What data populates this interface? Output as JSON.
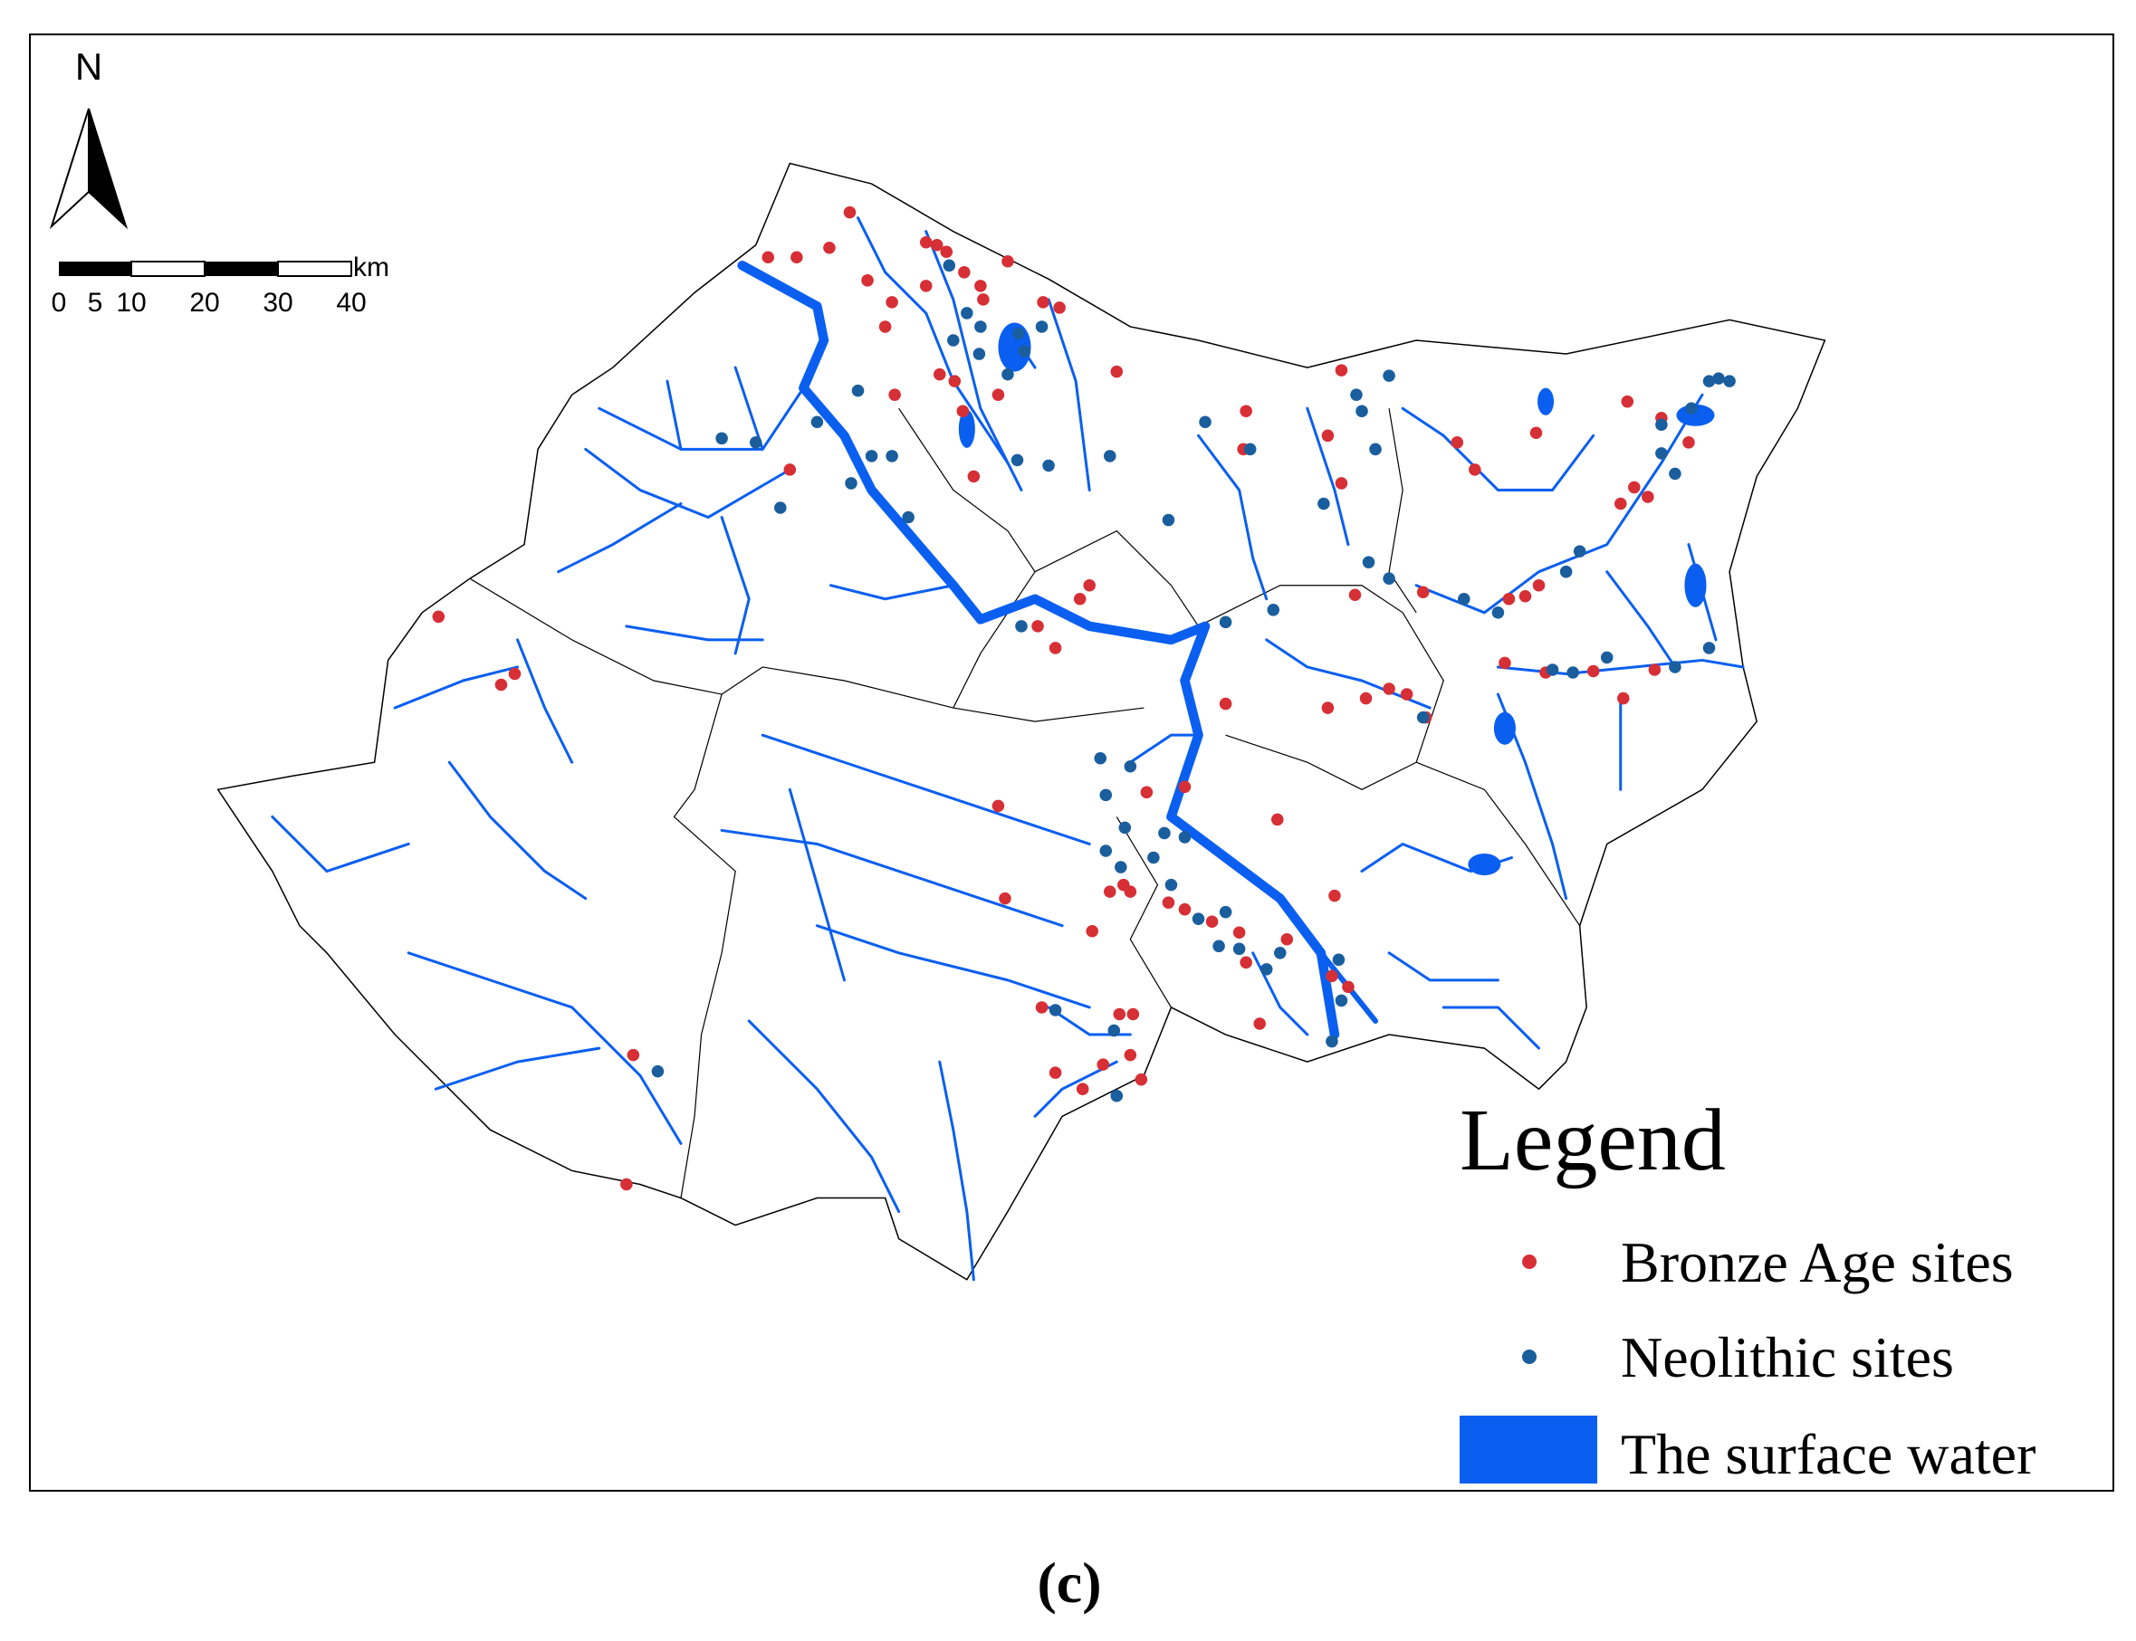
{
  "north_arrow": {
    "label": "N"
  },
  "scale_bar": {
    "labels": [
      "0",
      "5",
      "10",
      "20",
      "30",
      "40"
    ],
    "unit": "km"
  },
  "legend": {
    "title": "Legend",
    "items": [
      {
        "label": "Bronze Age sites",
        "color": "#d62f35"
      },
      {
        "label": "Neolithic sites",
        "color": "#1a5e9e"
      },
      {
        "label": "The surface water",
        "color": "#0a5ff0"
      }
    ]
  },
  "caption": "(c)"
}
